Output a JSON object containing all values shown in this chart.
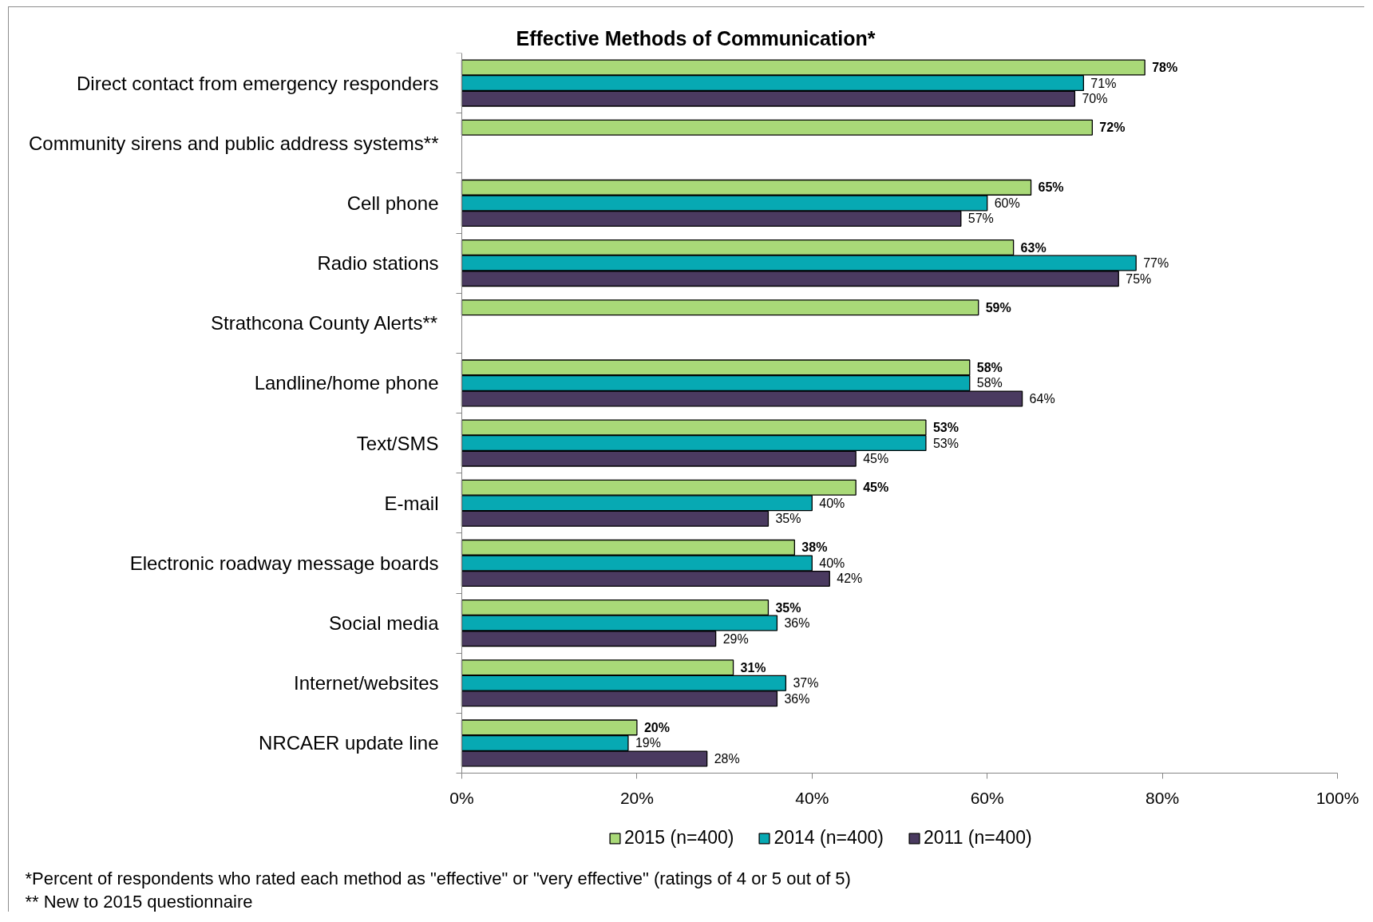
{
  "chart_data": {
    "type": "bar",
    "orientation": "horizontal",
    "title": "Effective Methods of Communication*",
    "categories": [
      "Direct contact from emergency responders",
      "Community sirens and public address systems**",
      "Cell phone",
      "Radio stations",
      "Strathcona County Alerts**",
      "Landline/home phone",
      "Text/SMS",
      "E-mail",
      "Electronic roadway message boards",
      "Social media",
      "Internet/websites",
      "NRCAER update line"
    ],
    "series": [
      {
        "name": "2015 (n=400)",
        "color": "#a9d978",
        "values": [
          78,
          72,
          65,
          63,
          59,
          58,
          53,
          45,
          38,
          35,
          31,
          20
        ],
        "value_labels": [
          "78%",
          "72%",
          "65%",
          "63%",
          "59%",
          "58%",
          "53%",
          "45%",
          "38%",
          "35%",
          "31%",
          "20%"
        ]
      },
      {
        "name": "2014 (n=400)",
        "color": "#07a9b3",
        "values": [
          71,
          null,
          60,
          77,
          null,
          58,
          53,
          40,
          40,
          36,
          37,
          19
        ],
        "value_labels": [
          "71%",
          null,
          "60%",
          "77%",
          null,
          "58%",
          "53%",
          "40%",
          "40%",
          "36%",
          "37%",
          "19%"
        ]
      },
      {
        "name": "2011 (n=400)",
        "color": "#4a3a60",
        "values": [
          70,
          null,
          57,
          75,
          null,
          64,
          45,
          35,
          42,
          29,
          36,
          28
        ],
        "value_labels": [
          "70%",
          null,
          "57%",
          "75%",
          null,
          "64%",
          "45%",
          "35%",
          "42%",
          "29%",
          "36%",
          "28%"
        ]
      }
    ],
    "xlim": [
      0,
      100
    ],
    "xticks": [
      {
        "value": 0,
        "label": "0%"
      },
      {
        "value": 20,
        "label": "20%"
      },
      {
        "value": 40,
        "label": "40%"
      },
      {
        "value": 60,
        "label": "60%"
      },
      {
        "value": 80,
        "label": "80%"
      },
      {
        "value": 100,
        "label": "100%"
      }
    ],
    "legend": "bottom",
    "annotations": [
      "*Percent of respondents who rated each method as \"effective\" or \"very effective\" (ratings of 4 or 5 out of 5)",
      "** New to 2015 questionnaire"
    ]
  }
}
